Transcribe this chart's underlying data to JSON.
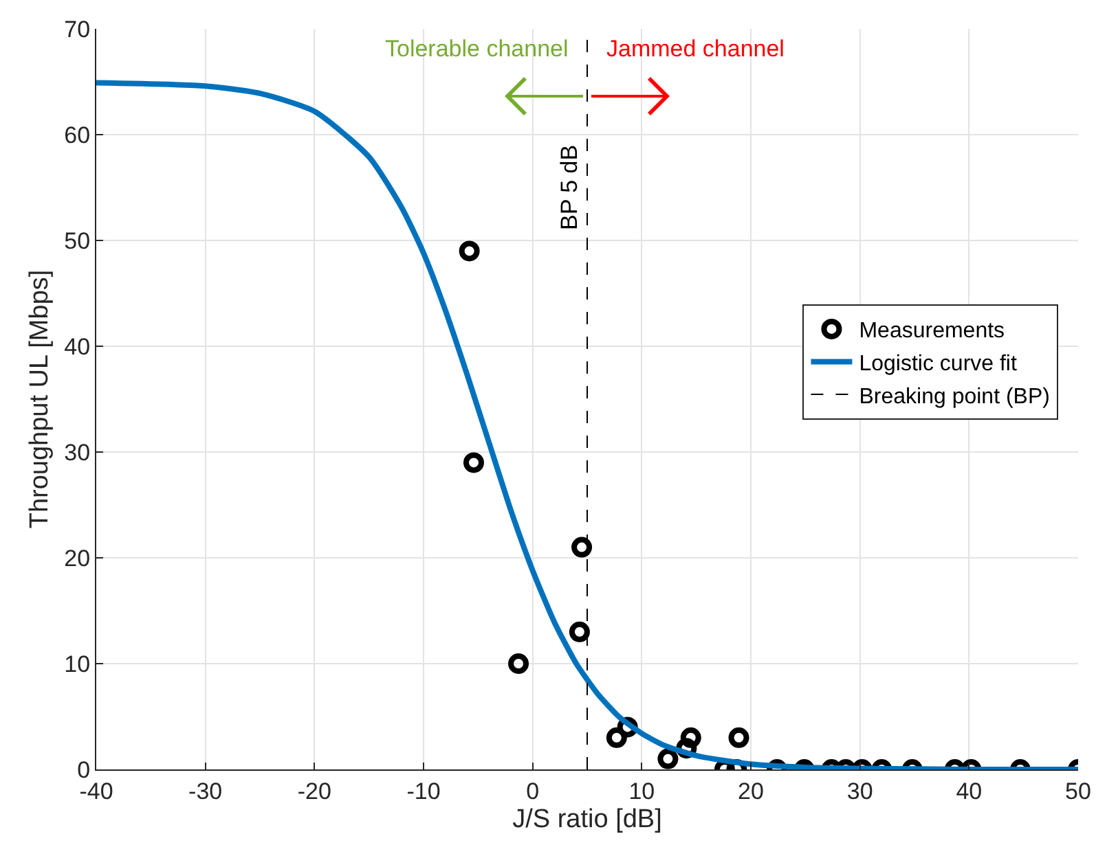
{
  "chart_data": {
    "type": "scatter",
    "xlabel": "J/S ratio [dB]",
    "ylabel": "Throughput UL [Mbps]",
    "xlim": [
      -40,
      50
    ],
    "xticks": [
      -40,
      -30,
      -20,
      -10,
      0,
      10,
      20,
      30,
      40,
      50
    ],
    "ylim": [
      0,
      70
    ],
    "yticks": [
      0,
      10,
      20,
      30,
      40,
      50,
      60,
      70
    ],
    "grid": true,
    "legend": "right",
    "series": [
      {
        "name": "Measurements",
        "color": "#000000",
        "marker": "circle",
        "x": [
          -5.8,
          -5.4,
          -1.3,
          4.5,
          4.3,
          7.7,
          8.7,
          12.4,
          14.1,
          14.5,
          18.9,
          17.6,
          18.7,
          22.4,
          24.9,
          27.4,
          28.7,
          30.2,
          32.0,
          34.8,
          38.7,
          40.2,
          44.7,
          50.0
        ],
        "values": [
          49,
          29,
          10,
          21,
          13,
          3,
          4,
          1,
          2,
          3,
          3,
          0,
          0,
          0,
          0,
          0,
          0,
          0,
          0,
          0,
          0,
          0,
          0,
          0
        ]
      },
      {
        "name": "Logistic curve fit",
        "type": "line",
        "color": "#0072bd",
        "line_style": "solid",
        "x": [
          -40,
          -30,
          -25,
          -20,
          -15,
          -12,
          -10,
          -8,
          -6,
          -4,
          -2,
          0,
          2,
          4,
          6,
          8,
          10,
          12,
          15,
          20,
          25,
          30,
          40,
          50
        ],
        "values": [
          64.9,
          64.6,
          63.9,
          62.2,
          57.9,
          53.1,
          48.8,
          43.4,
          37.3,
          30.9,
          24.5,
          18.8,
          13.9,
          10.0,
          7.1,
          4.9,
          3.4,
          2.3,
          1.3,
          0.5,
          0.2,
          0.1,
          0.0,
          0.0
        ]
      },
      {
        "name": "Breaking point (BP)",
        "type": "line",
        "color": "#000000",
        "line_style": "dashed",
        "x": [
          5,
          5
        ],
        "values": [
          0,
          70
        ]
      }
    ],
    "annotations": [
      "Tolerable channel",
      "Jammed channel",
      {
        "text": "BP 5 dB",
        "x": 5,
        "y": 55
      }
    ]
  }
}
